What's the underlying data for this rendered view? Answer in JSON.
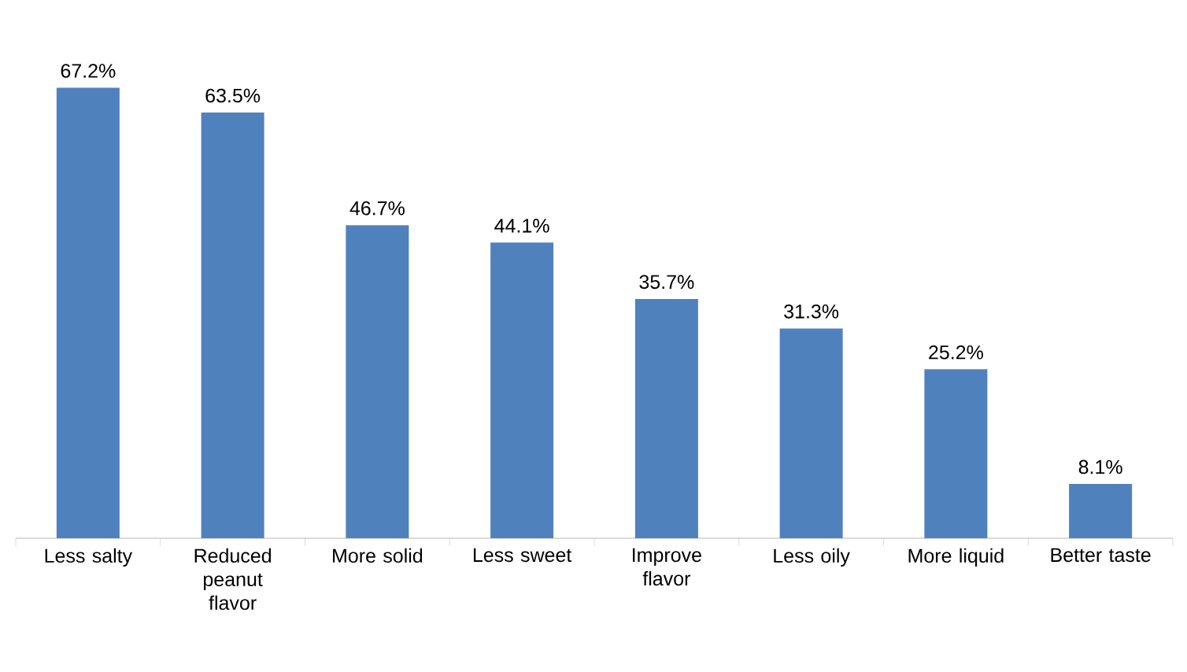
{
  "chart_data": {
    "type": "bar",
    "categories": [
      "Less salty",
      "Reduced peanut flavor",
      "More solid",
      "Less sweet",
      "Improve flavor",
      "Less oily",
      "More liquid",
      "Better taste"
    ],
    "values": [
      67.2,
      63.5,
      46.7,
      44.1,
      35.7,
      31.3,
      25.2,
      8.1
    ],
    "value_labels": [
      "67.2%",
      "63.5%",
      "46.7%",
      "44.1%",
      "35.7%",
      "31.3%",
      "25.2%",
      "8.1%"
    ],
    "color": "#4f81bd"
  }
}
